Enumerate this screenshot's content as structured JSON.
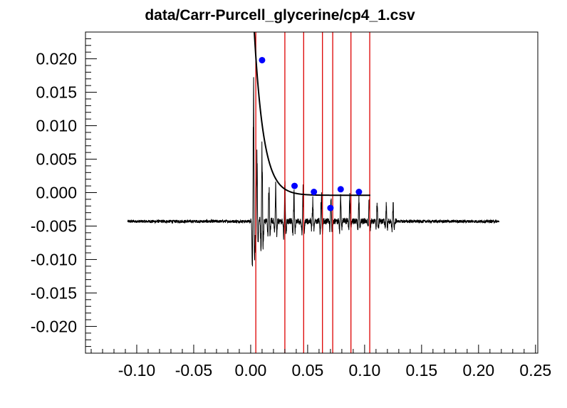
{
  "chart_data": {
    "type": "scatter",
    "title": "data/Carr-Purcell_glycerine/cp4_1.csv",
    "xlabel": "",
    "ylabel": "",
    "xlim": [
      -0.145,
      0.252
    ],
    "ylim": [
      -0.024,
      0.024
    ],
    "x_ticks": [
      -0.1,
      -0.05,
      0.0,
      0.05,
      0.1,
      0.15,
      0.2,
      0.25
    ],
    "x_tick_labels": [
      "-0.10",
      "-0.05",
      "0.00",
      "0.05",
      "0.10",
      "0.15",
      "0.20",
      "0.25"
    ],
    "y_ticks": [
      0.02,
      0.015,
      0.01,
      0.005,
      0.0,
      -0.005,
      -0.01,
      -0.015,
      -0.02
    ],
    "y_tick_labels": [
      "0.020",
      "0.015",
      "0.010",
      "0.005",
      "0.000",
      "-0.005",
      "-0.010",
      "-0.015",
      "-0.020"
    ],
    "series": [
      {
        "kind": "points",
        "color": "#0000ff",
        "x": [
          0.01,
          0.0385,
          0.0555,
          0.07,
          0.079,
          0.095
        ],
        "y": [
          0.0198,
          0.001,
          0.0001,
          -0.0023,
          0.0005,
          0.0001
        ]
      },
      {
        "kind": "fit",
        "color": "#000000",
        "model": "exponential decay",
        "x_range": [
          0.0,
          0.105
        ],
        "A": 0.036,
        "tau": 0.0082,
        "offset": -0.0004
      },
      {
        "kind": "signal",
        "color": "#000000",
        "x_range": [
          -0.108,
          0.218
        ],
        "baseline": -0.0043,
        "echo_times": [
          0.0025,
          0.0055,
          0.01,
          0.016,
          0.022,
          0.03,
          0.038,
          0.046,
          0.0545,
          0.062,
          0.0705,
          0.079,
          0.087,
          0.095,
          0.104,
          0.111,
          0.119,
          0.125
        ],
        "echo_amplitudes": [
          0.016,
          0.0085,
          0.011,
          0.0055,
          0.0045,
          0.005,
          0.004,
          0.004,
          0.0032,
          0.0037,
          0.003,
          0.0032,
          0.003,
          0.0027,
          0.0028,
          0.0026,
          0.0025,
          0.0024
        ]
      }
    ],
    "vertical_lines": {
      "color": "#dd0000",
      "x": [
        0.0045,
        0.03,
        0.0465,
        0.063,
        0.072,
        0.088,
        0.1045
      ]
    },
    "grid": false,
    "legend": "none"
  }
}
